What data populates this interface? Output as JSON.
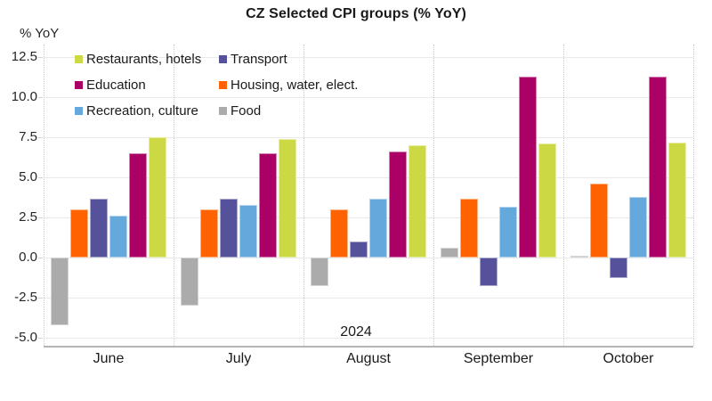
{
  "chart_data": {
    "type": "bar",
    "title": "CZ Selected CPI groups (% YoY)",
    "ylabel": "% YoY",
    "xlabel": "2024",
    "categories": [
      "June",
      "July",
      "August",
      "September",
      "October"
    ],
    "series": [
      {
        "name": "Food",
        "color": "#ABABAB",
        "values": [
          -4.2,
          -3.0,
          -1.8,
          0.6,
          0.1
        ]
      },
      {
        "name": "Housing, water, elect.",
        "color": "#FF6200",
        "values": [
          3.0,
          3.0,
          3.0,
          3.7,
          4.6
        ]
      },
      {
        "name": "Transport",
        "color": "#55519B",
        "values": [
          3.7,
          3.7,
          1.0,
          -1.8,
          -1.3
        ]
      },
      {
        "name": "Recreation, culture",
        "color": "#64A8DC",
        "values": [
          2.6,
          3.3,
          3.7,
          3.2,
          3.8
        ]
      },
      {
        "name": "Education",
        "color": "#AB0066",
        "values": [
          6.5,
          6.5,
          6.6,
          11.3,
          11.3
        ]
      },
      {
        "name": "Restaurants, hotels",
        "color": "#CDD944",
        "values": [
          7.5,
          7.4,
          7.0,
          7.1,
          7.2
        ]
      }
    ],
    "yticks": [
      12.5,
      10.0,
      7.5,
      5.0,
      2.5,
      0.0,
      -2.5,
      -5.0
    ],
    "ylim": [
      -5.5,
      13.3
    ],
    "grid": true,
    "legend": {
      "position": "top-left-inside",
      "order": [
        "Restaurants, hotels",
        "Transport",
        "Education",
        "Housing, water, elect.",
        "Recreation, culture",
        "Food"
      ]
    }
  }
}
